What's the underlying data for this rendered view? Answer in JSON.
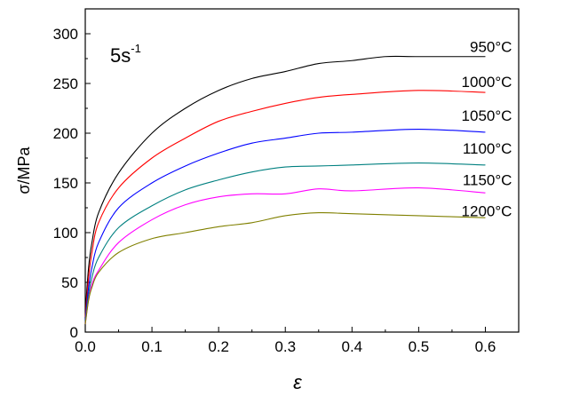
{
  "chart_data": {
    "type": "line",
    "title": "",
    "annotation": {
      "base": "5s",
      "sup": "-1"
    },
    "xlabel": "ε",
    "ylabel": "σ/MPa",
    "xlim": [
      0,
      0.65
    ],
    "ylim": [
      0,
      325
    ],
    "xticks": [
      0.0,
      0.1,
      0.2,
      0.3,
      0.4,
      0.5,
      0.6
    ],
    "xtick_labels": [
      "0.0",
      "0.1",
      "0.2",
      "0.3",
      "0.4",
      "0.5",
      "0.6"
    ],
    "yticks": [
      0,
      50,
      100,
      150,
      200,
      250,
      300
    ],
    "ytick_labels": [
      "0",
      "50",
      "100",
      "150",
      "200",
      "250",
      "300"
    ],
    "grid": false,
    "series": [
      {
        "name": "950°C",
        "color": "#000000",
        "label_y": 287,
        "x": [
          0,
          0.005,
          0.01,
          0.02,
          0.05,
          0.1,
          0.15,
          0.2,
          0.25,
          0.3,
          0.35,
          0.4,
          0.45,
          0.5,
          0.6
        ],
        "y": [
          20,
          65,
          90,
          120,
          160,
          200,
          225,
          243,
          255,
          262,
          270,
          273,
          277,
          277,
          277
        ]
      },
      {
        "name": "1000°C",
        "color": "#ff0000",
        "label_y": 252,
        "x": [
          0,
          0.005,
          0.01,
          0.02,
          0.05,
          0.1,
          0.15,
          0.2,
          0.25,
          0.3,
          0.35,
          0.4,
          0.5,
          0.6
        ],
        "y": [
          15,
          55,
          80,
          110,
          145,
          175,
          195,
          212,
          222,
          230,
          236,
          239,
          243,
          241
        ]
      },
      {
        "name": "1050°C",
        "color": "#0000ff",
        "label_y": 218,
        "x": [
          0,
          0.005,
          0.01,
          0.02,
          0.05,
          0.1,
          0.15,
          0.2,
          0.25,
          0.3,
          0.35,
          0.4,
          0.5,
          0.6
        ],
        "y": [
          12,
          45,
          65,
          90,
          125,
          150,
          167,
          180,
          190,
          195,
          200,
          201,
          204,
          201
        ]
      },
      {
        "name": "1100°C",
        "color": "#008080",
        "label_y": 185,
        "x": [
          0,
          0.005,
          0.01,
          0.02,
          0.05,
          0.1,
          0.15,
          0.2,
          0.25,
          0.3,
          0.35,
          0.4,
          0.5,
          0.6
        ],
        "y": [
          10,
          38,
          55,
          75,
          105,
          127,
          143,
          153,
          161,
          166,
          167,
          168,
          170,
          168
        ]
      },
      {
        "name": "1150°C",
        "color": "#ff00ff",
        "label_y": 153,
        "x": [
          0,
          0.005,
          0.01,
          0.02,
          0.05,
          0.1,
          0.15,
          0.2,
          0.25,
          0.3,
          0.35,
          0.4,
          0.5,
          0.6
        ],
        "y": [
          8,
          33,
          48,
          62,
          90,
          113,
          128,
          136,
          139,
          139,
          144,
          142,
          145,
          140
        ]
      },
      {
        "name": "1200°C",
        "color": "#808000",
        "label_y": 122,
        "x": [
          0,
          0.005,
          0.01,
          0.02,
          0.05,
          0.1,
          0.15,
          0.2,
          0.25,
          0.3,
          0.35,
          0.4,
          0.5,
          0.6
        ],
        "y": [
          8,
          32,
          45,
          60,
          80,
          94,
          100,
          106,
          110,
          117,
          120,
          119,
          117,
          115
        ]
      }
    ]
  }
}
